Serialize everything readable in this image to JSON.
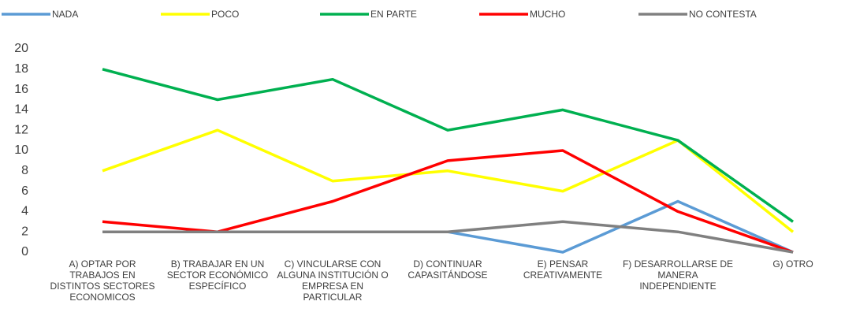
{
  "chart_data": {
    "type": "line",
    "categories": [
      "A) OPTAR POR TRABAJOS EN DISTINTOS SECTORES ECONOMICOS",
      "B) TRABAJAR EN UN SECTOR ECONÓMICO ESPECÍFICO",
      "C) VINCULARSE CON ALGUNA INSTITUCIÓN O EMPRESA EN PARTICULAR",
      "D) CONTINUAR CAPASITÁNDOSE",
      "E) PENSAR CREATIVAMENTE",
      "F) DESARROLLARSE DE MANERA INDEPENDIENTE",
      "G) OTRO"
    ],
    "series": [
      {
        "name": "NADA",
        "color": "#5b9bd5",
        "values": [
          2,
          2,
          2,
          2,
          0,
          5,
          0
        ]
      },
      {
        "name": "POCO",
        "color": "#ffff00",
        "values": [
          8,
          12,
          7,
          8,
          6,
          11,
          2
        ]
      },
      {
        "name": "EN PARTE",
        "color": "#00b050",
        "values": [
          18,
          15,
          17,
          12,
          14,
          11,
          3
        ]
      },
      {
        "name": "MUCHO",
        "color": "#ff0000",
        "values": [
          3,
          2,
          5,
          9,
          10,
          4,
          0
        ]
      },
      {
        "name": "NO CONTESTA",
        "color": "#808080",
        "values": [
          2,
          2,
          2,
          2,
          3,
          2,
          0
        ]
      }
    ],
    "ylim": [
      0,
      20
    ],
    "yticks": [
      0,
      2,
      4,
      6,
      8,
      10,
      12,
      14,
      16,
      18,
      20
    ],
    "legend": "top"
  }
}
